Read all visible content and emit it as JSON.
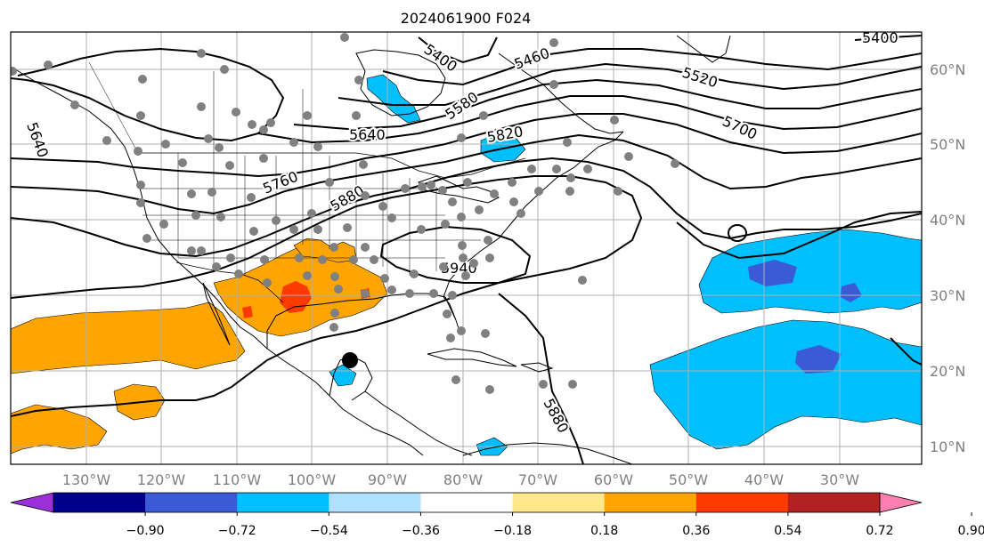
{
  "title": "2024061900 F024",
  "map": {
    "lon_range": [
      -140,
      -19
    ],
    "lat_range": [
      7,
      65
    ],
    "longitude_labels": [
      {
        "lon": -130,
        "text": "130°W"
      },
      {
        "lon": -120,
        "text": "120°W"
      },
      {
        "lon": -110,
        "text": "110°W"
      },
      {
        "lon": -100,
        "text": "100°W"
      },
      {
        "lon": -90,
        "text": "90°W"
      },
      {
        "lon": -80,
        "text": "80°W"
      },
      {
        "lon": -70,
        "text": "70°W"
      },
      {
        "lon": -60,
        "text": "60°W"
      },
      {
        "lon": -50,
        "text": "50°W"
      },
      {
        "lon": -40,
        "text": "40°W"
      },
      {
        "lon": -30,
        "text": "30°W"
      }
    ],
    "latitude_labels": [
      {
        "lat": 60,
        "text": "60°N"
      },
      {
        "lat": 50,
        "text": "50°N"
      },
      {
        "lat": 40,
        "text": "40°N"
      },
      {
        "lat": 30,
        "text": "30°N"
      },
      {
        "lat": 20,
        "text": "20°N"
      },
      {
        "lat": 10,
        "text": "10°N"
      }
    ],
    "contour_labels": [
      "5400",
      "5460",
      "5400",
      "5520",
      "5580",
      "5640",
      "5640",
      "5700",
      "5760",
      "5820",
      "5880",
      "5940",
      "5880"
    ],
    "colors": {
      "ocean": "#ffffff",
      "coast": "#000000",
      "grid": "#b0b0b0",
      "station": "#808080"
    }
  },
  "colorbar": {
    "ticks": [
      "−0.90",
      "−0.72",
      "−0.54",
      "−0.36",
      "−0.18",
      "0.18",
      "0.36",
      "0.54",
      "0.72",
      "0.90"
    ],
    "colors": [
      "#9b30d9",
      "#00008b",
      "#3b5bd6",
      "#00bfff",
      "#b0e0ff",
      "#ffffff",
      "#ffe88a",
      "#ffa500",
      "#ff3a00",
      "#b22222",
      "#ff7fb0"
    ]
  }
}
